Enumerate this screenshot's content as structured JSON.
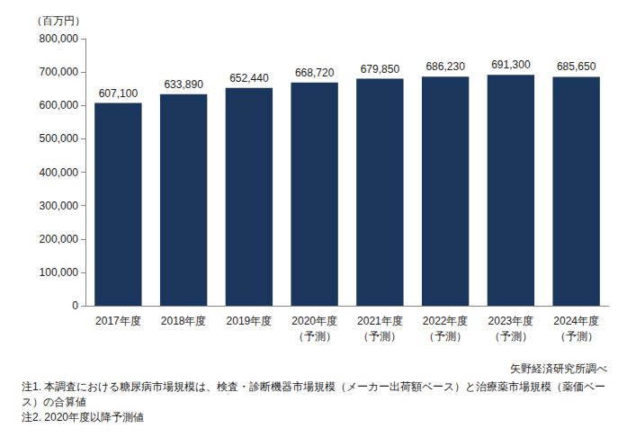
{
  "chart_data": {
    "type": "bar",
    "y_label": "（百万円）",
    "categories": [
      "2017年度",
      "2018年度",
      "2019年度",
      "2020年度\n（予測）",
      "2021年度\n（予測）",
      "2022年度\n（予測）",
      "2023年度\n（予測）",
      "2024年度\n（予測）"
    ],
    "values": [
      607100,
      633890,
      652440,
      668720,
      679850,
      686230,
      691300,
      685650
    ],
    "value_labels": [
      "607,100",
      "633,890",
      "652,440",
      "668,720",
      "679,850",
      "686,230",
      "691,300",
      "685,650"
    ],
    "color": "#1b365d",
    "ylim": [
      0,
      800000
    ],
    "yticks": [
      0,
      {
        "value": 100000,
        "label": "100,000"
      },
      {
        "value": 200000,
        "label": "200,000"
      },
      {
        "value": 300000,
        "label": "300,000"
      },
      {
        "value": 400000,
        "label": "400,000"
      },
      {
        "value": 500000,
        "label": "500,000"
      },
      {
        "value": 600000,
        "label": "600,000"
      },
      {
        "value": 700000,
        "label": "700,000"
      },
      {
        "value": 800000,
        "label": "800,000"
      }
    ],
    "grid": false,
    "data_labels": true,
    "source": "矢野経済研究所調べ",
    "notes": [
      "注1. 本調査における糖尿病市場規模は、検査・診断機器市場規模（メーカー出荷額ベース）と治療薬市場規模（薬価ベース）の合算値",
      "注2. 2020年度以降予測値"
    ]
  }
}
